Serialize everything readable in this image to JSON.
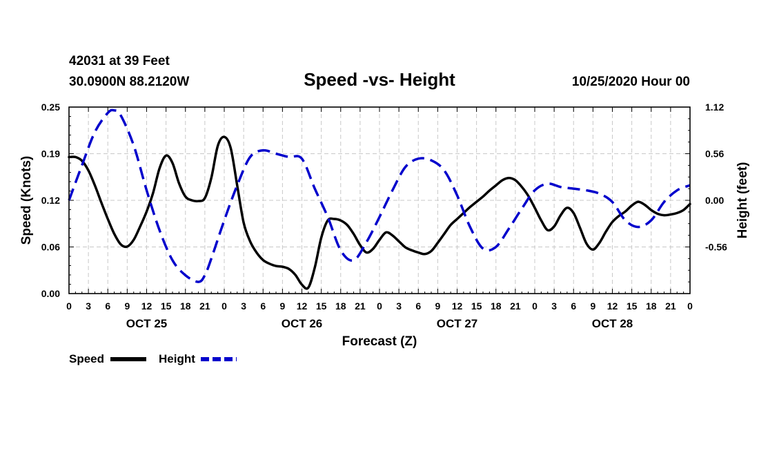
{
  "header": {
    "station": "42031 at 39 Feet",
    "location": "30.0900N 88.2120W",
    "title": "Speed -vs- Height",
    "datetime": "10/25/2020 Hour 00"
  },
  "chart_data": {
    "type": "line",
    "title": "Speed -vs- Height",
    "xlabel": "Forecast (Z)",
    "ylabel_left": "Speed (Knots)",
    "ylabel_right": "Height (feet)",
    "x_unit": "forecast hour",
    "xlim": [
      0,
      96
    ],
    "ylim_left": [
      0.0,
      0.25
    ],
    "ylim_right": [
      -1.12,
      1.12
    ],
    "x_tick_labels": [
      "0",
      "3",
      "6",
      "9",
      "12",
      "15",
      "18",
      "21",
      "0",
      "3",
      "6",
      "9",
      "12",
      "15",
      "18",
      "21",
      "0",
      "3",
      "6",
      "9",
      "12",
      "15",
      "18",
      "21",
      "0",
      "3",
      "6",
      "9",
      "12",
      "15",
      "18",
      "21",
      "0"
    ],
    "y_left_ticks": [
      "0.00",
      "0.06",
      "0.12",
      "0.19",
      "0.25"
    ],
    "y_left_tick_values": [
      0.0,
      0.0625,
      0.125,
      0.1875,
      0.25
    ],
    "y_right_ticks": [
      "-0.56",
      "0.00",
      "0.56",
      "1.12"
    ],
    "y_right_tick_values": [
      -0.56,
      0.0,
      0.56,
      1.12
    ],
    "day_labels": [
      {
        "text": "OCT 25",
        "hour": 12
      },
      {
        "text": "OCT 26",
        "hour": 36
      },
      {
        "text": "OCT 27",
        "hour": 60
      },
      {
        "text": "OCT 28",
        "hour": 84
      }
    ],
    "grid": true,
    "legend_position": "bottom-left",
    "series": [
      {
        "name": "Speed",
        "axis": "left",
        "color": "#000000",
        "style": "solid",
        "x": [
          0,
          1,
          2,
          3,
          4,
          5,
          6,
          7,
          8,
          9,
          10,
          11,
          12,
          13,
          14,
          15,
          16,
          17,
          18,
          19,
          20,
          21,
          22,
          23,
          24,
          25,
          26,
          27,
          28,
          29,
          30,
          31,
          32,
          33,
          34,
          35,
          36,
          37,
          38,
          39,
          40,
          41,
          42,
          43,
          44,
          45,
          46,
          47,
          48,
          49,
          50,
          51,
          52,
          53,
          54,
          55,
          56,
          57,
          58,
          59,
          60,
          61,
          62,
          63,
          64,
          65,
          66,
          67,
          68,
          69,
          70,
          71,
          72,
          73,
          74,
          75,
          76,
          77,
          78,
          79,
          80,
          81,
          82,
          83,
          84,
          85,
          86,
          87,
          88,
          89,
          90,
          91,
          92,
          93,
          94,
          95,
          96
        ],
        "values": [
          0.183,
          0.183,
          0.178,
          0.165,
          0.145,
          0.122,
          0.1,
          0.08,
          0.066,
          0.063,
          0.072,
          0.09,
          0.11,
          0.135,
          0.168,
          0.185,
          0.175,
          0.148,
          0.13,
          0.125,
          0.124,
          0.128,
          0.155,
          0.198,
          0.21,
          0.195,
          0.145,
          0.095,
          0.07,
          0.055,
          0.045,
          0.04,
          0.037,
          0.036,
          0.033,
          0.025,
          0.012,
          0.008,
          0.035,
          0.075,
          0.098,
          0.1,
          0.098,
          0.092,
          0.08,
          0.065,
          0.055,
          0.06,
          0.072,
          0.082,
          0.078,
          0.07,
          0.062,
          0.058,
          0.055,
          0.053,
          0.057,
          0.068,
          0.08,
          0.092,
          0.1,
          0.108,
          0.116,
          0.123,
          0.13,
          0.138,
          0.145,
          0.152,
          0.155,
          0.152,
          0.143,
          0.131,
          0.115,
          0.098,
          0.085,
          0.09,
          0.105,
          0.115,
          0.108,
          0.088,
          0.067,
          0.059,
          0.068,
          0.083,
          0.096,
          0.104,
          0.11,
          0.118,
          0.123,
          0.119,
          0.112,
          0.107,
          0.105,
          0.106,
          0.108,
          0.112,
          0.12
        ]
      },
      {
        "name": "Height",
        "axis": "right",
        "color": "#0000cc",
        "style": "dashed",
        "x": [
          0,
          2,
          4,
          6,
          7,
          8,
          10,
          12,
          14,
          16,
          18,
          20,
          21,
          22,
          24,
          26,
          28,
          30,
          32,
          34,
          36,
          38,
          40,
          42,
          44,
          46,
          48,
          50,
          52,
          54,
          56,
          58,
          60,
          62,
          64,
          66,
          68,
          70,
          72,
          74,
          76,
          78,
          80,
          82,
          84,
          86,
          88,
          90,
          92,
          94,
          96
        ],
        "values": [
          0.0,
          0.42,
          0.82,
          1.05,
          1.08,
          1.02,
          0.66,
          0.12,
          -0.36,
          -0.72,
          -0.9,
          -0.98,
          -0.9,
          -0.7,
          -0.24,
          0.18,
          0.52,
          0.6,
          0.56,
          0.52,
          0.5,
          0.14,
          -0.2,
          -0.6,
          -0.72,
          -0.5,
          -0.2,
          0.12,
          0.4,
          0.5,
          0.48,
          0.36,
          0.06,
          -0.32,
          -0.58,
          -0.56,
          -0.34,
          -0.1,
          0.12,
          0.2,
          0.16,
          0.14,
          0.12,
          0.08,
          -0.02,
          -0.24,
          -0.32,
          -0.24,
          -0.02,
          0.12,
          0.18
        ]
      }
    ]
  },
  "legend": [
    {
      "label": "Speed",
      "color": "#000000",
      "style": "solid"
    },
    {
      "label": "Height",
      "color": "#0000cc",
      "style": "dashed"
    }
  ]
}
